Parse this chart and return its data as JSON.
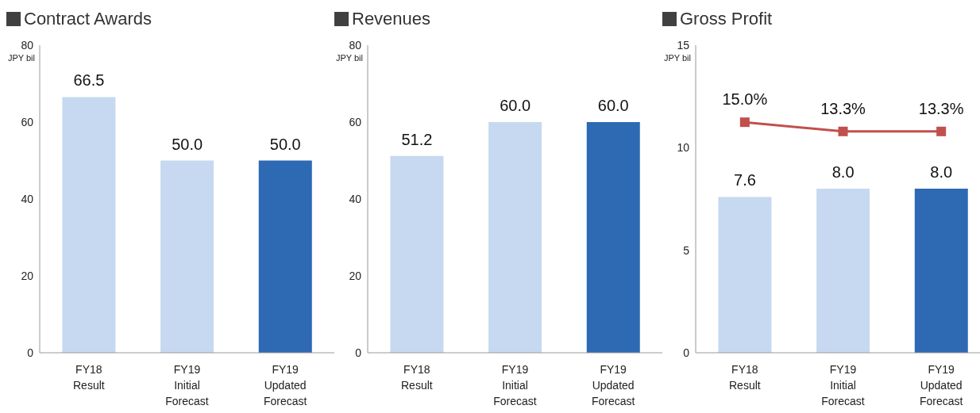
{
  "chart_data": [
    {
      "type": "bar",
      "title": "Contract Awards",
      "ylabel": "JPY bil",
      "categories": [
        "FY18\nResult",
        "FY19\nInitial\nForecast",
        "FY19\nUpdated\nForecast"
      ],
      "series": [
        {
          "colors": [
            "#c6d9f0",
            "#c6d9f0",
            "#2e69b3"
          ],
          "values": [
            66.5,
            50.0,
            50.0
          ],
          "value_labels": [
            "66.5",
            "50.0",
            "50.0"
          ]
        }
      ],
      "ylim": [
        0,
        80
      ],
      "yticks": [
        0,
        20,
        40,
        60,
        80
      ],
      "grid": false,
      "legend": false
    },
    {
      "type": "bar",
      "title": "Revenues",
      "ylabel": "JPY bil",
      "categories": [
        "FY18\nResult",
        "FY19\nInitial\nForecast",
        "FY19\nUpdated\nForecast"
      ],
      "series": [
        {
          "colors": [
            "#c6d9f0",
            "#c6d9f0",
            "#2e69b3"
          ],
          "values": [
            51.2,
            60.0,
            60.0
          ],
          "value_labels": [
            "51.2",
            "60.0",
            "60.0"
          ]
        }
      ],
      "ylim": [
        0,
        80
      ],
      "yticks": [
        0,
        20,
        40,
        60,
        80
      ],
      "grid": false,
      "legend": false
    },
    {
      "type": "bar",
      "title": "Gross Profit",
      "ylabel": "JPY bil",
      "categories": [
        "FY18\nResult",
        "FY19\nInitial\nForecast",
        "FY19\nUpdated\nForecast"
      ],
      "series": [
        {
          "colors": [
            "#c6d9f0",
            "#c6d9f0",
            "#2e69b3"
          ],
          "values": [
            7.6,
            8.0,
            8.0
          ],
          "value_labels": [
            "7.6",
            "8.0",
            "8.0"
          ]
        },
        {
          "type": "line",
          "axis": "y2",
          "color": "#c0504d",
          "marker": "square",
          "values": [
            15.0,
            13.3,
            13.3
          ],
          "value_labels": [
            "15.0%",
            "13.3%",
            "13.3%"
          ]
        }
      ],
      "ylim": [
        0,
        15
      ],
      "yticks": [
        0,
        5,
        10,
        15
      ],
      "y2lim": [
        -27.5,
        29.2
      ],
      "grid": false,
      "legend": false
    }
  ]
}
